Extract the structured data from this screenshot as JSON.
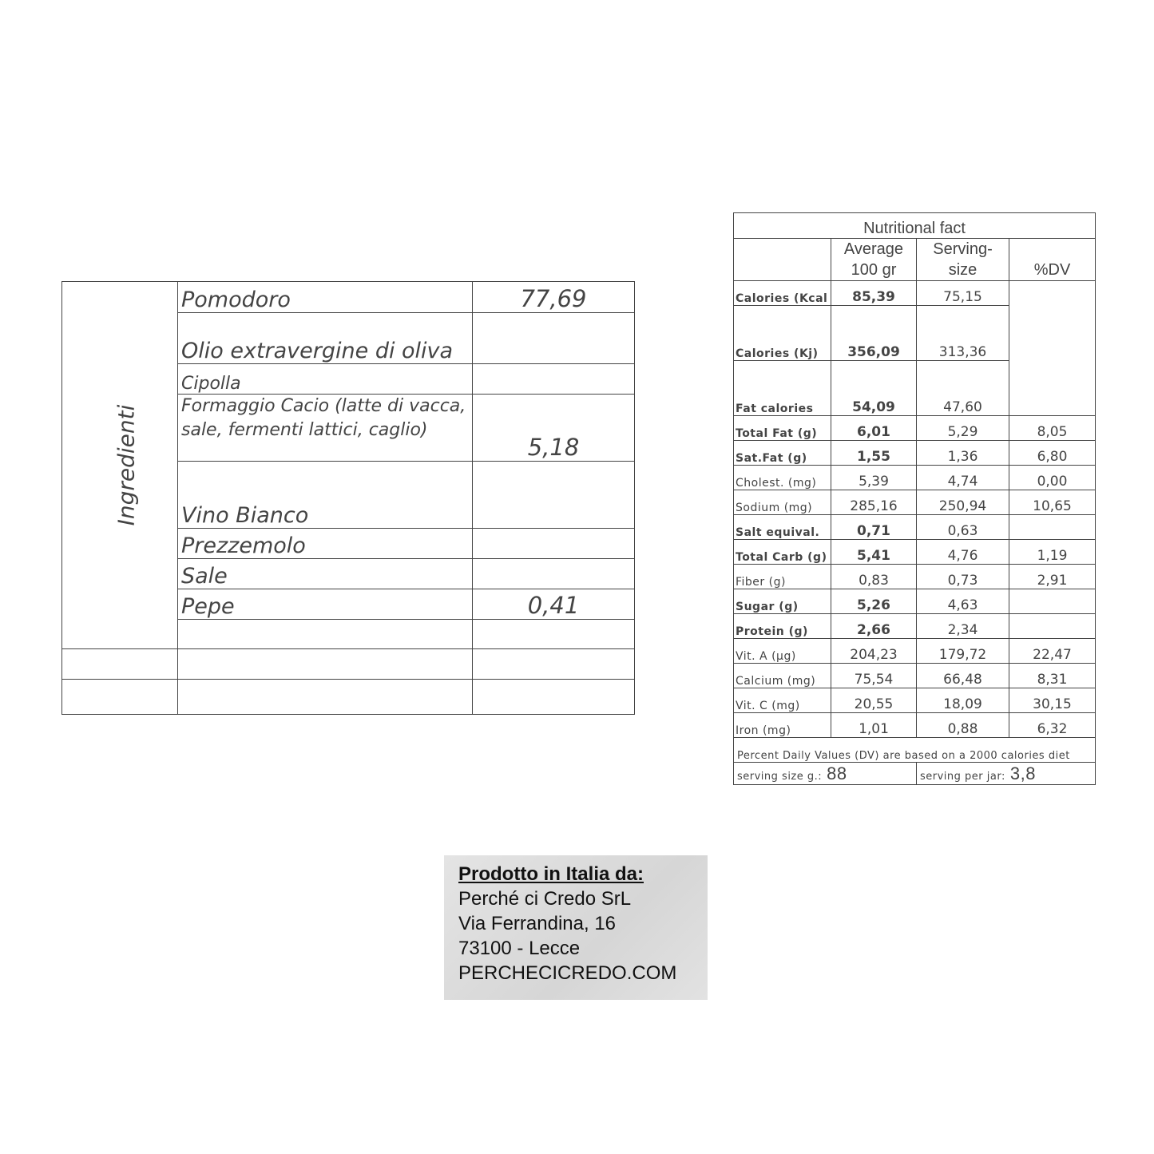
{
  "ingredients": {
    "side_label": "Ingredienti",
    "rows": [
      {
        "name": "Pomodoro",
        "value": "77,69"
      },
      {
        "name": "Olio extravergine di oliva",
        "value": ""
      },
      {
        "name": "Cipolla",
        "value": ""
      },
      {
        "name": "Formaggio Cacio (latte di vacca, sale, fermenti lattici, caglio)",
        "value": "5,18"
      },
      {
        "name": "Vino Bianco",
        "value": ""
      },
      {
        "name": "Prezzemolo",
        "value": ""
      },
      {
        "name": "Sale",
        "value": ""
      },
      {
        "name": "Pepe",
        "value": "0,41"
      }
    ]
  },
  "nutrition": {
    "title": "Nutritional fact",
    "headers": [
      "Average 100 gr",
      "Serving-size",
      "%DV"
    ],
    "energy": [
      {
        "label": "Calories (Kcal",
        "avg": "85,39",
        "serving": "75,15"
      },
      {
        "label": "Calories (Kj)",
        "avg": "356,09",
        "serving": "313,36"
      },
      {
        "label": "Fat calories",
        "avg": "54,09",
        "serving": "47,60"
      }
    ],
    "rows": [
      {
        "label": "Total Fat (g)",
        "avg": "6,01",
        "serving": "5,29",
        "dv": "8,05",
        "bold": true
      },
      {
        "label": "Sat.Fat (g)",
        "avg": "1,55",
        "serving": "1,36",
        "dv": "6,80",
        "bold": true
      },
      {
        "label": "Cholest. (mg)",
        "avg": "5,39",
        "serving": "4,74",
        "dv": "0,00",
        "bold": false
      },
      {
        "label": "Sodium (mg)",
        "avg": "285,16",
        "serving": "250,94",
        "dv": "10,65",
        "bold": false
      },
      {
        "label": "Salt equival.",
        "avg": "0,71",
        "serving": "0,63",
        "dv": "",
        "bold": true
      },
      {
        "label": "Total Carb (g)",
        "avg": "5,41",
        "serving": "4,76",
        "dv": "1,19",
        "bold": true
      },
      {
        "label": "Fiber (g)",
        "avg": "0,83",
        "serving": "0,73",
        "dv": "2,91",
        "bold": false
      },
      {
        "label": "Sugar (g)",
        "avg": "5,26",
        "serving": "4,63",
        "dv": "",
        "bold": true
      },
      {
        "label": "Protein (g)",
        "avg": "2,66",
        "serving": "2,34",
        "dv": "",
        "bold": true
      },
      {
        "label": "Vit. A (µg)",
        "avg": "204,23",
        "serving": "179,72",
        "dv": "22,47",
        "bold": false
      },
      {
        "label": "Calcium (mg)",
        "avg": "75,54",
        "serving": "66,48",
        "dv": "8,31",
        "bold": false
      },
      {
        "label": "Vit. C (mg)",
        "avg": "20,55",
        "serving": "18,09",
        "dv": "30,15",
        "bold": false
      },
      {
        "label": "Iron (mg)",
        "avg": "1,01",
        "serving": "0,88",
        "dv": "6,32",
        "bold": false
      }
    ],
    "footnote": "Percent Daily Values (DV) are based on a 2000 calories diet",
    "serving_size_label": "serving size g.:",
    "serving_size_value": "88",
    "serving_per_jar_label": "serving per jar:",
    "serving_per_jar_value": "3,8"
  },
  "producer": {
    "heading": "Prodotto in Italia da:",
    "lines": [
      "Perché ci Credo SrL",
      "Via Ferrandina, 16",
      "73100 - Lecce",
      "PERCHECICREDO.COM"
    ]
  }
}
